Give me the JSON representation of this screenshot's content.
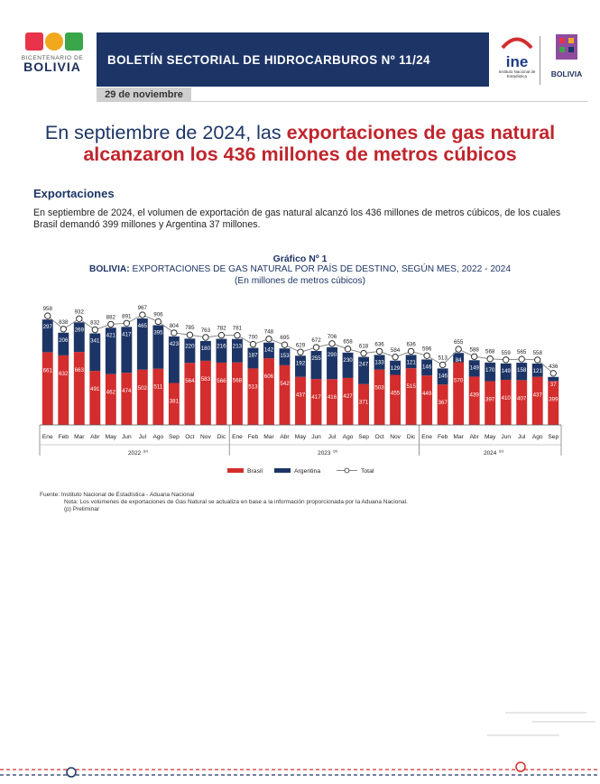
{
  "header": {
    "logo_left_line1": "BICENTENARIO DE",
    "logo_left_line2": "BOLIVIA",
    "bulletin_title": "BOLETÍN SECTORIAL DE HIDROCARBUROS Nº 11/24",
    "date": "29 de noviembre",
    "ine_word": "ine",
    "ine_sub": "Instituto Nacional de Estadística",
    "ministry_word": "BOLIVIA"
  },
  "headline": {
    "part1": "En septiembre de 2024, las ",
    "part2": "exportaciones de gas natural alcanzaron los 436 millones de metros cúbicos"
  },
  "section": {
    "title": "Exportaciones",
    "paragraph": "En septiembre de 2024, el volumen de exportación de gas natural alcanzó los 436 millones de metros cúbicos, de los cuales Brasil demandó 399 millones y Argentina 37 millones."
  },
  "chart_header": {
    "number": "Gráfico Nº 1",
    "country": "BOLIVIA:",
    "title": " EXPORTACIONES DE GAS NATURAL POR PAÍS DE DESTINO, SEGÚN MES, 2022 - 2024",
    "unit": "(En millones de metros cúbicos)"
  },
  "chart_data": {
    "type": "bar",
    "stacked": true,
    "title": "BOLIVIA: EXPORTACIONES DE GAS NATURAL POR PAÍS DE DESTINO, SEGÚN MES, 2022 - 2024",
    "subtitle": "(En millones de metros cúbicos)",
    "categories": [
      "Ene",
      "Feb",
      "Mar",
      "Abr",
      "May",
      "Jun",
      "Jul",
      "Ago",
      "Sep",
      "Oct",
      "Nov",
      "Dic",
      "Ene",
      "Feb",
      "Mar",
      "Abr",
      "May",
      "Jun",
      "Jul",
      "Ago",
      "Sep",
      "Oct",
      "Nov",
      "Dic",
      "Ene",
      "Feb",
      "Mar",
      "Abr",
      "May",
      "Jun",
      "Jul",
      "Ago",
      "Sep"
    ],
    "year_groups": [
      {
        "label": "2022",
        "sup": "(p)",
        "count": 12
      },
      {
        "label": "2023",
        "sup": "(p)",
        "count": 12
      },
      {
        "label": "2024",
        "sup": "(p)",
        "count": 9
      }
    ],
    "series": [
      {
        "name": "Brasil",
        "color": "#d32d2d",
        "values": [
          661,
          632,
          663,
          491,
          462,
          474,
          502,
          511,
          381,
          564,
          583,
          566,
          568,
          513,
          606,
          542,
          437,
          417,
          416,
          427,
          371,
          503,
          455,
          515,
          449,
          367,
          570,
          439,
          397,
          410,
          407,
          437,
          399
        ]
      },
      {
        "name": "Argentina",
        "color": "#1d3566",
        "values": [
          297,
          206,
          269,
          341,
          421,
          417,
          465,
          395,
          423,
          220,
          180,
          216,
          213,
          187,
          142,
          153,
          192,
          255,
          290,
          230,
          247,
          133,
          129,
          121,
          146,
          146,
          84,
          149,
          170,
          149,
          158,
          121,
          37
        ]
      }
    ],
    "total": {
      "name": "Total",
      "color": "#888888",
      "values": [
        958,
        838,
        932,
        832,
        882,
        891,
        967,
        906,
        804,
        785,
        763,
        782,
        781,
        700,
        748,
        695,
        629,
        672,
        706,
        658,
        618,
        636,
        584,
        636,
        596,
        513,
        655,
        588,
        568,
        559,
        565,
        558,
        436
      ]
    },
    "ylim": [
      0,
      1000
    ],
    "legend": "bottom"
  },
  "notes": {
    "source": "Fuente: Instituto Nacional de Estadística - Aduana Nacional",
    "note": "Nota: Los volúmenes de exportaciones de Gas Natural se actualiza en base a la información proporcionada por la Aduana Nacional.",
    "prelim": "(p) Preliminar"
  }
}
